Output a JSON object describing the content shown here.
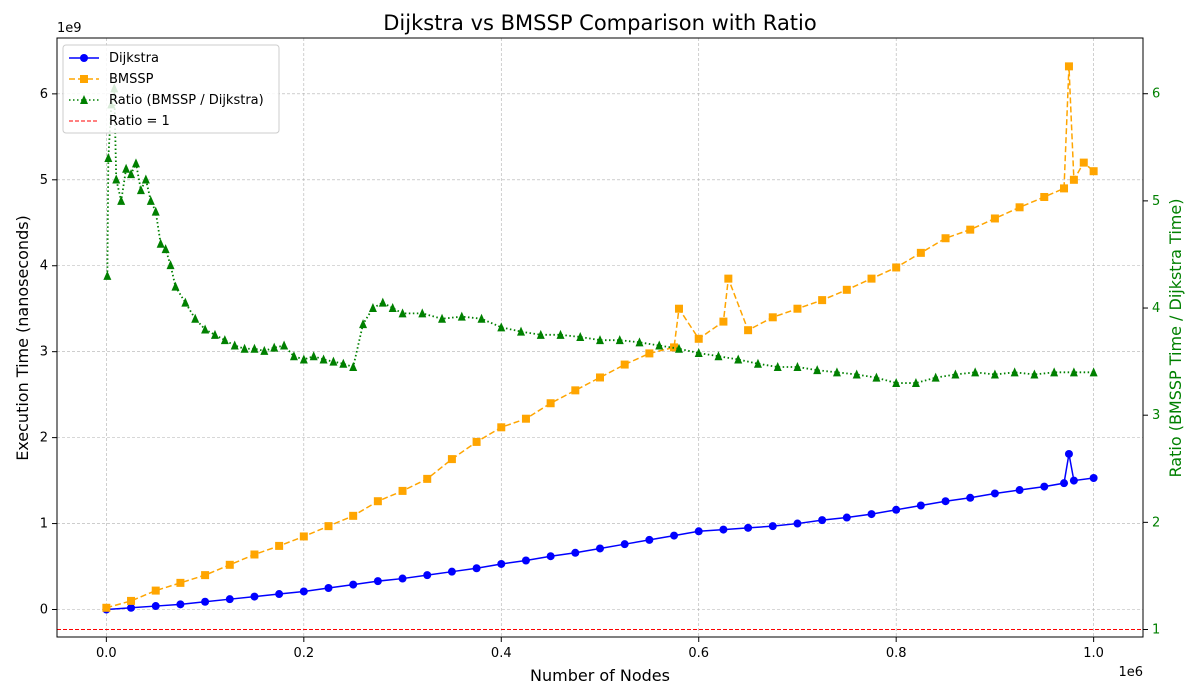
{
  "chart_data": {
    "type": "line",
    "title": "Dijkstra vs BMSSP Comparison with Ratio",
    "xlabel": "Number of Nodes",
    "ylabel": "Execution Time (nanoseconds)",
    "y2label": "Ratio (BMSSP Time / Dijkstra Time)",
    "x_offset_label": "1e6",
    "y_offset_label": "1e9",
    "xlim": [
      -0.05,
      1.05
    ],
    "ylim": [
      -0.32,
      6.65
    ],
    "y2lim": [
      0.93,
      6.52
    ],
    "x_ticks": [
      0.0,
      0.2,
      0.4,
      0.6,
      0.8,
      1.0
    ],
    "x_tick_labels": [
      "0.0",
      "0.2",
      "0.4",
      "0.6",
      "0.8",
      "1.0"
    ],
    "y_ticks": [
      0,
      1,
      2,
      3,
      4,
      5,
      6
    ],
    "y_tick_labels": [
      "0",
      "1",
      "2",
      "3",
      "4",
      "5",
      "6"
    ],
    "y2_ticks": [
      1,
      2,
      3,
      4,
      5,
      6
    ],
    "y2_tick_labels": [
      "1",
      "2",
      "3",
      "4",
      "5",
      "6"
    ],
    "grid": true,
    "legend_position": "top-left",
    "reference_line": {
      "name": "Ratio = 1",
      "value": 1,
      "axis": "right",
      "color": "#ff0000"
    },
    "series": [
      {
        "name": "Dijkstra",
        "axis": "left",
        "color": "#0000ff",
        "marker": "circle",
        "line_style": "solid",
        "x": [
          0.0,
          0.025,
          0.05,
          0.075,
          0.1,
          0.125,
          0.15,
          0.175,
          0.2,
          0.225,
          0.25,
          0.275,
          0.3,
          0.325,
          0.35,
          0.375,
          0.4,
          0.425,
          0.45,
          0.475,
          0.5,
          0.525,
          0.55,
          0.575,
          0.6,
          0.625,
          0.65,
          0.675,
          0.7,
          0.725,
          0.75,
          0.775,
          0.8,
          0.825,
          0.85,
          0.875,
          0.9,
          0.925,
          0.95,
          0.97,
          0.975,
          0.98,
          1.0
        ],
        "values": [
          0.0,
          0.02,
          0.04,
          0.06,
          0.09,
          0.12,
          0.15,
          0.18,
          0.21,
          0.25,
          0.29,
          0.33,
          0.36,
          0.4,
          0.44,
          0.48,
          0.53,
          0.57,
          0.62,
          0.66,
          0.71,
          0.76,
          0.81,
          0.86,
          0.91,
          0.93,
          0.95,
          0.97,
          1.0,
          1.04,
          1.07,
          1.11,
          1.16,
          1.21,
          1.26,
          1.3,
          1.35,
          1.39,
          1.43,
          1.47,
          1.81,
          1.5,
          1.53
        ]
      },
      {
        "name": "BMSSP",
        "axis": "left",
        "color": "#ffa500",
        "marker": "square",
        "line_style": "dashed",
        "x": [
          0.0,
          0.025,
          0.05,
          0.075,
          0.1,
          0.125,
          0.15,
          0.175,
          0.2,
          0.225,
          0.25,
          0.275,
          0.3,
          0.325,
          0.35,
          0.375,
          0.4,
          0.425,
          0.45,
          0.475,
          0.5,
          0.525,
          0.55,
          0.575,
          0.58,
          0.6,
          0.625,
          0.63,
          0.65,
          0.675,
          0.7,
          0.725,
          0.75,
          0.775,
          0.8,
          0.825,
          0.85,
          0.875,
          0.9,
          0.925,
          0.95,
          0.97,
          0.975,
          0.98,
          0.99,
          1.0
        ],
        "values": [
          0.02,
          0.1,
          0.22,
          0.31,
          0.4,
          0.52,
          0.64,
          0.74,
          0.85,
          0.97,
          1.09,
          1.26,
          1.38,
          1.52,
          1.75,
          1.95,
          2.12,
          2.22,
          2.4,
          2.55,
          2.7,
          2.85,
          2.98,
          3.05,
          3.5,
          3.15,
          3.35,
          3.85,
          3.25,
          3.4,
          3.5,
          3.6,
          3.72,
          3.85,
          3.98,
          4.15,
          4.32,
          4.42,
          4.55,
          4.68,
          4.8,
          4.9,
          6.32,
          5.0,
          5.2,
          5.1
        ]
      },
      {
        "name": "Ratio (BMSSP / Dijkstra)",
        "axis": "right",
        "color": "#008000",
        "marker": "triangle",
        "line_style": "dotted",
        "x": [
          0.001,
          0.002,
          0.005,
          0.008,
          0.01,
          0.015,
          0.02,
          0.025,
          0.03,
          0.035,
          0.04,
          0.045,
          0.05,
          0.055,
          0.06,
          0.065,
          0.07,
          0.08,
          0.09,
          0.1,
          0.11,
          0.12,
          0.13,
          0.14,
          0.15,
          0.16,
          0.17,
          0.18,
          0.19,
          0.2,
          0.21,
          0.22,
          0.23,
          0.24,
          0.25,
          0.26,
          0.27,
          0.28,
          0.29,
          0.3,
          0.32,
          0.34,
          0.36,
          0.38,
          0.4,
          0.42,
          0.44,
          0.46,
          0.48,
          0.5,
          0.52,
          0.54,
          0.56,
          0.58,
          0.6,
          0.62,
          0.64,
          0.66,
          0.68,
          0.7,
          0.72,
          0.74,
          0.76,
          0.78,
          0.8,
          0.82,
          0.84,
          0.86,
          0.88,
          0.9,
          0.92,
          0.94,
          0.96,
          0.98,
          1.0
        ],
        "values": [
          4.3,
          5.4,
          5.9,
          6.05,
          5.2,
          5.0,
          5.3,
          5.25,
          5.35,
          5.1,
          5.2,
          5.0,
          4.9,
          4.6,
          4.55,
          4.4,
          4.2,
          4.05,
          3.9,
          3.8,
          3.75,
          3.7,
          3.65,
          3.62,
          3.62,
          3.6,
          3.63,
          3.65,
          3.55,
          3.52,
          3.55,
          3.52,
          3.5,
          3.48,
          3.45,
          3.85,
          4.0,
          4.05,
          4.0,
          3.95,
          3.95,
          3.9,
          3.92,
          3.9,
          3.82,
          3.78,
          3.75,
          3.75,
          3.73,
          3.7,
          3.7,
          3.68,
          3.65,
          3.62,
          3.58,
          3.55,
          3.52,
          3.48,
          3.45,
          3.45,
          3.42,
          3.4,
          3.38,
          3.35,
          3.3,
          3.3,
          3.35,
          3.38,
          3.4,
          3.38,
          3.4,
          3.38,
          3.4,
          3.4,
          3.4
        ]
      }
    ]
  }
}
